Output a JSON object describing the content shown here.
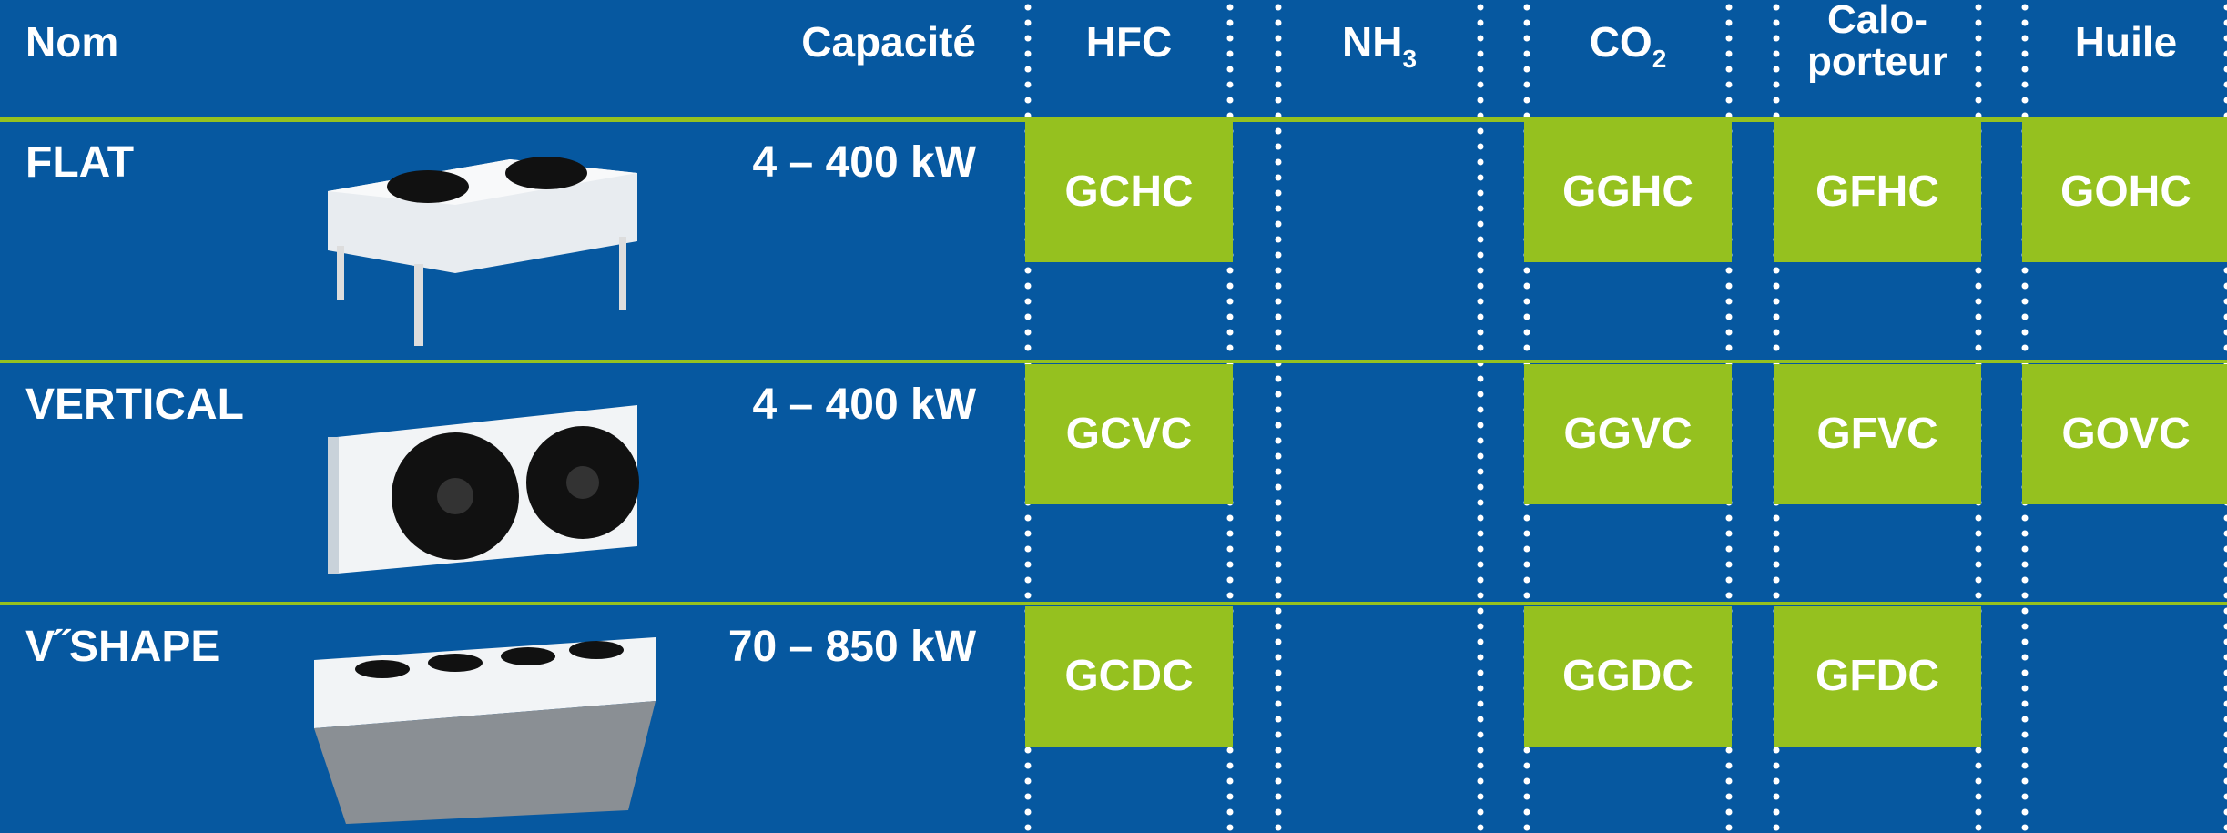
{
  "header": {
    "nom": "Nom",
    "capacite": "Capacité",
    "columns": [
      {
        "text": "HFC"
      },
      {
        "text": "NH",
        "sub": "3"
      },
      {
        "text": "CO",
        "sub": "2"
      },
      {
        "lines": [
          "Calo-",
          "porteur"
        ]
      },
      {
        "text": "Huile"
      }
    ]
  },
  "rows": [
    {
      "name": "FLAT",
      "capacity": "4 – 400 kW",
      "codes": [
        "GCHC",
        null,
        "GGHC",
        "GFHC",
        "GOHC"
      ]
    },
    {
      "name": "VERTICAL",
      "capacity": "4 – 400 kW",
      "codes": [
        "GCVC",
        null,
        "GGVC",
        "GFVC",
        "GOVC"
      ]
    },
    {
      "name": "V˝SHAPE",
      "capacity": "70 – 850 kW",
      "codes": [
        "GCDC",
        null,
        "GGDC",
        "GFDC",
        null
      ]
    }
  ]
}
